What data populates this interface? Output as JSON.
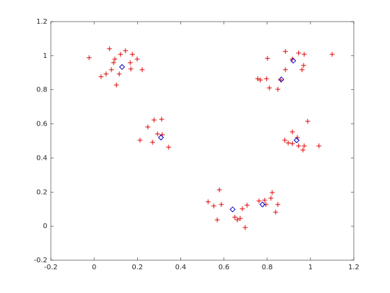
{
  "chart_data": {
    "type": "scatter",
    "xlim": [
      -0.2,
      1.2
    ],
    "ylim": [
      -0.2,
      1.2
    ],
    "xticks": [
      -0.2,
      0,
      0.2,
      0.4,
      0.6,
      0.8,
      1,
      1.2
    ],
    "yticks": [
      -0.2,
      0,
      0.2,
      0.4,
      0.6,
      0.8,
      1,
      1.2
    ],
    "grid": false,
    "series": [
      {
        "color": "#e00000",
        "marker": "plus",
        "x": [
          -0.023,
          0.071,
          0.145,
          0.122,
          0.177,
          0.096,
          0.199,
          0.167,
          0.09,
          0.222,
          0.17,
          0.08,
          0.055,
          0.032,
          0.116,
          0.103,
          0.884,
          0.801,
          0.945,
          0.971,
          1.1,
          0.916,
          0.968,
          0.961,
          0.884,
          0.756,
          0.768,
          0.797,
          0.862,
          0.81,
          0.849,
          0.312,
          0.277,
          0.248,
          0.293,
          0.315,
          0.212,
          0.27,
          0.344,
          0.987,
          0.916,
          0.939,
          0.881,
          0.897,
          0.916,
          0.945,
          0.971,
          0.965,
          1.039,
          0.579,
          0.527,
          0.588,
          0.553,
          0.569,
          0.65,
          0.662,
          0.675,
          0.685,
          0.698,
          0.707,
          0.762,
          0.788,
          0.823,
          0.817,
          0.794,
          0.849,
          0.839
        ],
        "y": [
          0.988,
          1.041,
          1.029,
          1.008,
          1.008,
          0.98,
          0.98,
          0.959,
          0.959,
          0.918,
          0.922,
          0.918,
          0.893,
          0.877,
          0.893,
          0.828,
          1.025,
          0.984,
          1.016,
          1.008,
          1.008,
          0.98,
          0.943,
          0.918,
          0.918,
          0.865,
          0.857,
          0.865,
          0.857,
          0.811,
          0.803,
          0.627,
          0.623,
          0.582,
          0.541,
          0.537,
          0.504,
          0.492,
          0.463,
          0.615,
          0.553,
          0.52,
          0.504,
          0.488,
          0.484,
          0.471,
          0.471,
          0.447,
          0.471,
          0.213,
          0.143,
          0.127,
          0.119,
          0.037,
          0.053,
          0.037,
          0.045,
          0.102,
          -0.008,
          0.123,
          0.148,
          0.152,
          0.197,
          0.164,
          0.127,
          0.127,
          0.082
        ]
      },
      {
        "color": "#0000cc",
        "marker": "diamond",
        "x": [
          0.129,
          0.92,
          0.865,
          0.309,
          0.936,
          0.64,
          0.778
        ],
        "y": [
          0.934,
          0.971,
          0.861,
          0.52,
          0.504,
          0.098,
          0.127
        ]
      }
    ]
  }
}
